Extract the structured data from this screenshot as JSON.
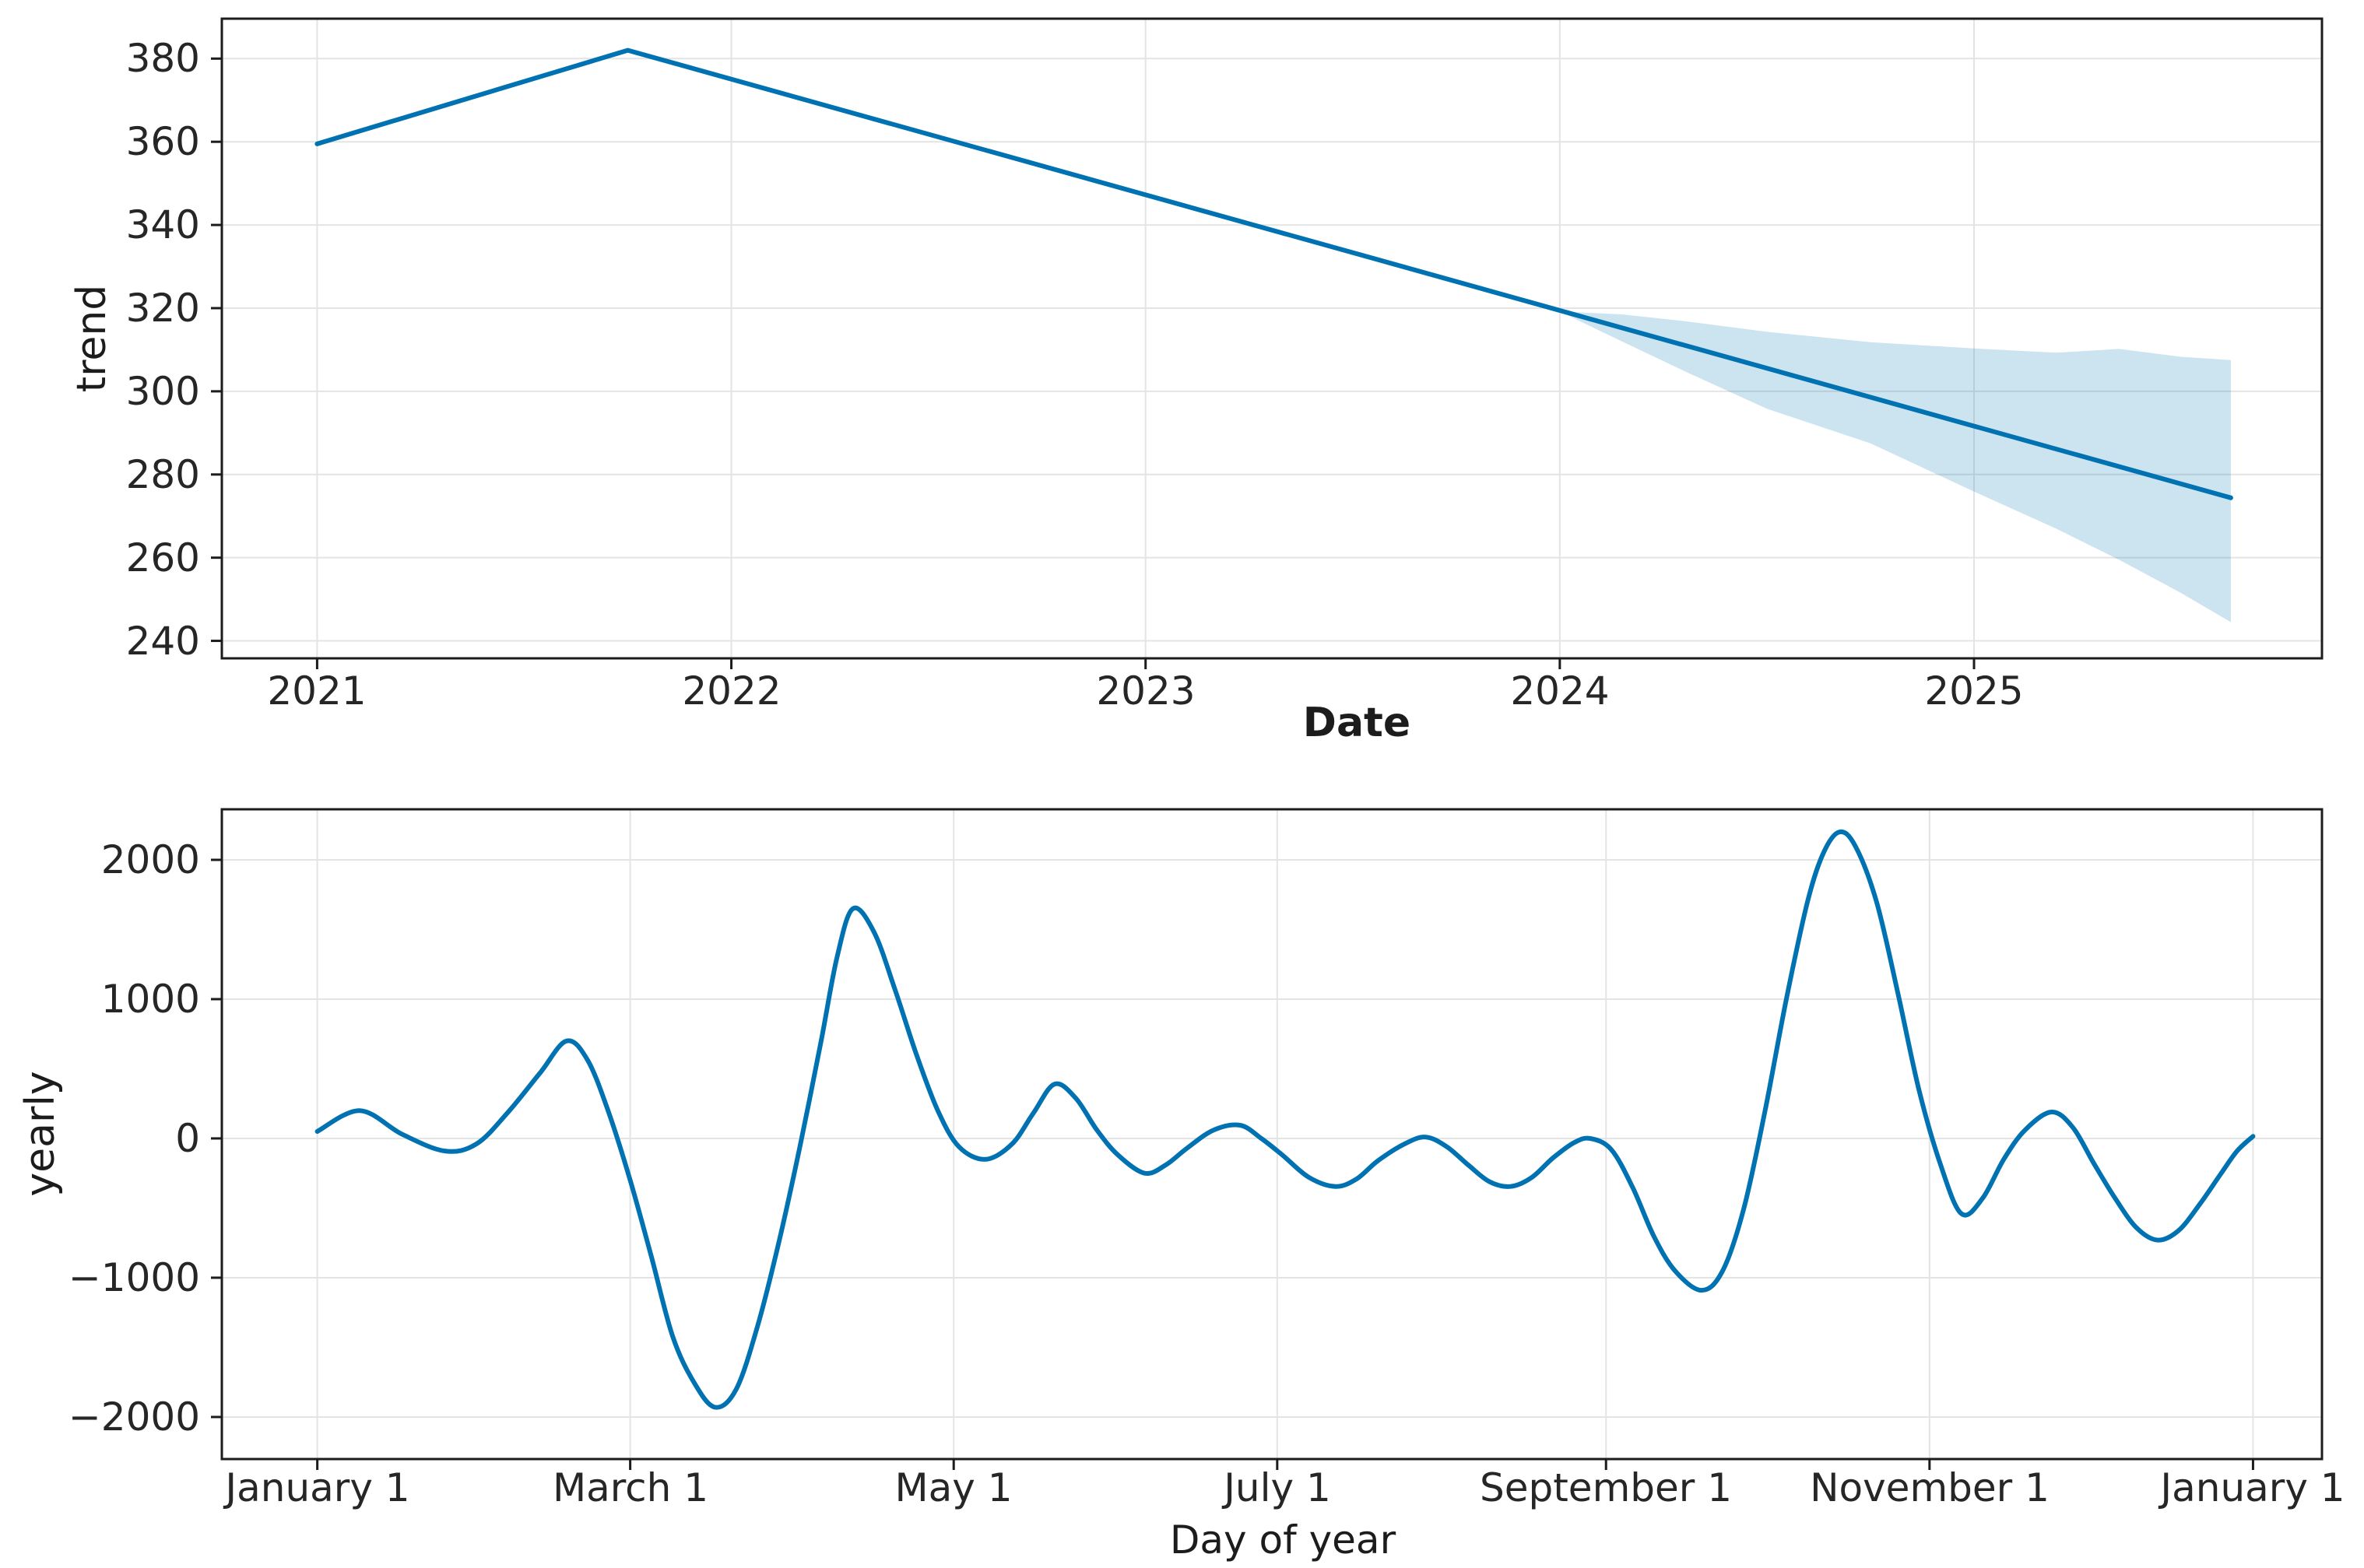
{
  "figure": {
    "description": "Forecast components figure with trend panel and yearly seasonality panel",
    "background_color": "#ffffff",
    "line_color": "#0072B2",
    "band_color": "rgba(0,114,178,0.2)",
    "grid_color": "#e4e4e4",
    "spine_color": "#1c1c1c"
  },
  "chart_data": [
    {
      "type": "line",
      "name": "trend-panel",
      "xlabel": "Date",
      "ylabel": "trend",
      "grid": true,
      "legend_position": "none",
      "xlim": [
        2020.77,
        2025.84
      ],
      "ylim": [
        235.8,
        389.6
      ],
      "x_ticks": [
        {
          "value": 2021,
          "label": "2021"
        },
        {
          "value": 2022,
          "label": "2022"
        },
        {
          "value": 2023,
          "label": "2023"
        },
        {
          "value": 2024,
          "label": "2024"
        },
        {
          "value": 2025,
          "label": "2025"
        }
      ],
      "y_ticks": [
        {
          "value": 240,
          "label": "240"
        },
        {
          "value": 260,
          "label": "260"
        },
        {
          "value": 280,
          "label": "280"
        },
        {
          "value": 300,
          "label": "300"
        },
        {
          "value": 320,
          "label": "320"
        },
        {
          "value": 340,
          "label": "340"
        },
        {
          "value": 360,
          "label": "360"
        },
        {
          "value": 380,
          "label": "380"
        }
      ],
      "series": [
        {
          "name": "trend",
          "smooth": false,
          "points": [
            [
              2021.0,
              359.5
            ],
            [
              2021.75,
              382.0
            ],
            [
              2025.62,
              274.4
            ]
          ]
        }
      ],
      "uncertainty_band": [
        [
          2024.0,
          319.2,
          319.2
        ],
        [
          2024.15,
          312.0,
          318.5
        ],
        [
          2024.3,
          304.9,
          316.9
        ],
        [
          2024.5,
          295.8,
          314.3
        ],
        [
          2024.75,
          287.5,
          311.8
        ],
        [
          2025.0,
          275.9,
          310.3
        ],
        [
          2025.2,
          266.9,
          309.3
        ],
        [
          2025.35,
          259.5,
          310.2
        ],
        [
          2025.5,
          251.5,
          308.3
        ],
        [
          2025.62,
          244.5,
          307.5
        ]
      ]
    },
    {
      "type": "line",
      "name": "yearly-panel",
      "xlabel": "Day of year",
      "ylabel": "yearly",
      "grid": true,
      "legend_position": "none",
      "xlim": [
        -18,
        378
      ],
      "ylim": [
        -2302,
        2363
      ],
      "x_ticks": [
        {
          "value": 0,
          "label": "January 1"
        },
        {
          "value": 59,
          "label": "March 1"
        },
        {
          "value": 120,
          "label": "May 1"
        },
        {
          "value": 181,
          "label": "July 1"
        },
        {
          "value": 243,
          "label": "September 1"
        },
        {
          "value": 304,
          "label": "November 1"
        },
        {
          "value": 365,
          "label": "January 1"
        }
      ],
      "y_ticks": [
        {
          "value": -2000,
          "label": "−2000"
        },
        {
          "value": -1000,
          "label": "−1000"
        },
        {
          "value": 0,
          "label": "0"
        },
        {
          "value": 1000,
          "label": "1000"
        },
        {
          "value": 2000,
          "label": "2000"
        }
      ],
      "series": [
        {
          "name": "yearly",
          "smooth": true,
          "points": [
            [
              0,
              50
            ],
            [
              8,
              200
            ],
            [
              16,
              30
            ],
            [
              24,
              -90
            ],
            [
              30,
              -40
            ],
            [
              36,
              190
            ],
            [
              42,
              470
            ],
            [
              47,
              700
            ],
            [
              51,
              560
            ],
            [
              55,
              180
            ],
            [
              59,
              -300
            ],
            [
              63,
              -850
            ],
            [
              67,
              -1420
            ],
            [
              71,
              -1750
            ],
            [
              75,
              -1930
            ],
            [
              79,
              -1800
            ],
            [
              83,
              -1350
            ],
            [
              87,
              -750
            ],
            [
              91,
              -60
            ],
            [
              95,
              700
            ],
            [
              98,
              1300
            ],
            [
              101,
              1650
            ],
            [
              105,
              1480
            ],
            [
              109,
              1060
            ],
            [
              113,
              600
            ],
            [
              117,
              200
            ],
            [
              121,
              -60
            ],
            [
              126,
              -150
            ],
            [
              131,
              -40
            ],
            [
              135,
              180
            ],
            [
              139,
              390
            ],
            [
              143,
              290
            ],
            [
              147,
              60
            ],
            [
              151,
              -120
            ],
            [
              156,
              -250
            ],
            [
              160,
              -190
            ],
            [
              164,
              -70
            ],
            [
              169,
              60
            ],
            [
              174,
              95
            ],
            [
              178,
              0
            ],
            [
              182,
              -120
            ],
            [
              187,
              -280
            ],
            [
              192,
              -345
            ],
            [
              196,
              -290
            ],
            [
              200,
              -160
            ],
            [
              205,
              -40
            ],
            [
              209,
              10
            ],
            [
              213,
              -60
            ],
            [
              217,
              -190
            ],
            [
              221,
              -310
            ],
            [
              225,
              -345
            ],
            [
              229,
              -280
            ],
            [
              233,
              -140
            ],
            [
              237,
              -30
            ],
            [
              240,
              0
            ],
            [
              244,
              -80
            ],
            [
              248,
              -350
            ],
            [
              252,
              -700
            ],
            [
              256,
              -950
            ],
            [
              261,
              -1090
            ],
            [
              265,
              -950
            ],
            [
              269,
              -500
            ],
            [
              273,
              200
            ],
            [
              277,
              1000
            ],
            [
              281,
              1700
            ],
            [
              284,
              2050
            ],
            [
              287,
              2200
            ],
            [
              290,
              2100
            ],
            [
              294,
              1700
            ],
            [
              298,
              1050
            ],
            [
              302,
              350
            ],
            [
              306,
              -180
            ],
            [
              310,
              -540
            ],
            [
              314,
              -430
            ],
            [
              318,
              -150
            ],
            [
              322,
              60
            ],
            [
              327,
              190
            ],
            [
              331,
              80
            ],
            [
              335,
              -180
            ],
            [
              339,
              -430
            ],
            [
              343,
              -640
            ],
            [
              347,
              -730
            ],
            [
              351,
              -660
            ],
            [
              355,
              -470
            ],
            [
              359,
              -250
            ],
            [
              362,
              -90
            ],
            [
              365,
              15
            ]
          ]
        }
      ]
    }
  ]
}
